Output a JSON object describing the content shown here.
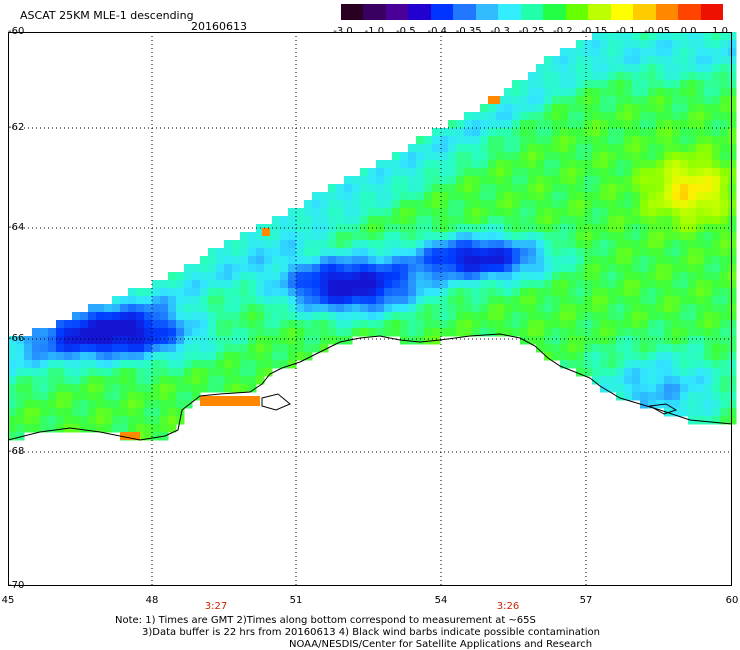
{
  "header": {
    "title": "ASCAT 25KM MLE-1 descending",
    "date": "20160613"
  },
  "colorbar": {
    "labels": [
      "-3.0",
      "-1.0",
      "-0.5",
      "-0.4",
      "-0.35",
      "-0.3",
      "-0.25",
      "-0.2",
      "-0.15",
      "-0.1",
      "-0.05",
      "0.0",
      "1.0"
    ],
    "colors": [
      "#2a0022",
      "#3a0060",
      "#4a0098",
      "#2200d0",
      "#0033ff",
      "#2277ff",
      "#33bbff",
      "#33eeff",
      "#22ffaa",
      "#22ff44",
      "#66ff00",
      "#bbff00",
      "#ffff00",
      "#ffcc00",
      "#ff8800",
      "#ff4400",
      "#ee1100"
    ]
  },
  "axes": {
    "lat_labels": [
      "-60",
      "-62",
      "-64",
      "-66",
      "-68",
      "-70"
    ],
    "lon_labels": [
      "45",
      "48",
      "51",
      "54",
      "57",
      "60"
    ],
    "lat_range": [
      -70,
      -60
    ],
    "lon_range": [
      45,
      60
    ],
    "grid": "dotted"
  },
  "time_labels": [
    "3:27",
    "3:26"
  ],
  "notes": {
    "line1": "Note: 1) Times are GMT 2)Times along bottom correspond to measurement at ~65S",
    "line2": "3)Data buffer is 22 hrs from 20160613 4) Black wind barbs indicate possible contamination",
    "line3": "NOAA/NESDIS/Center for Satellite Applications and Research"
  },
  "map": {
    "field": "MLE-1",
    "coastline_color": "#000000",
    "land_color": "#ffffff"
  }
}
